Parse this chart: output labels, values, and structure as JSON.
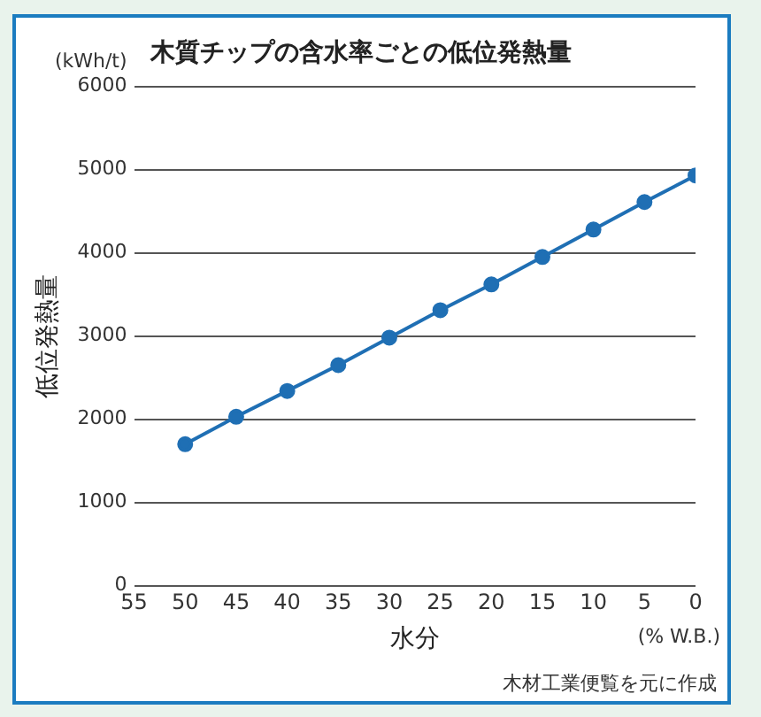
{
  "chart_data": {
    "type": "line",
    "title": "木質チップの含水率ごとの低位発熱量",
    "xlabel": "水分",
    "ylabel": "低位発熱量",
    "annotations": [
      "(kWh/t)",
      "(% W.B.)",
      "木材工業便覧を元に作成"
    ],
    "x": [
      50,
      45,
      40,
      35,
      30,
      25,
      20,
      15,
      10,
      5,
      0
    ],
    "series": [
      {
        "color": "#1f6fb4",
        "values": [
          1700,
          2030,
          2340,
          2650,
          2980,
          3310,
          3620,
          3950,
          4280,
          4610,
          4930
        ]
      }
    ],
    "xlim": [
      55,
      0
    ],
    "xticks": [
      55,
      50,
      45,
      40,
      35,
      30,
      25,
      20,
      15,
      10,
      5,
      0
    ],
    "ylim": [
      0,
      6000
    ],
    "yticks": [
      0,
      1000,
      2000,
      3000,
      4000,
      5000,
      6000
    ],
    "grid": "y",
    "marker": "circle",
    "line_style": "solid",
    "legend": false
  }
}
